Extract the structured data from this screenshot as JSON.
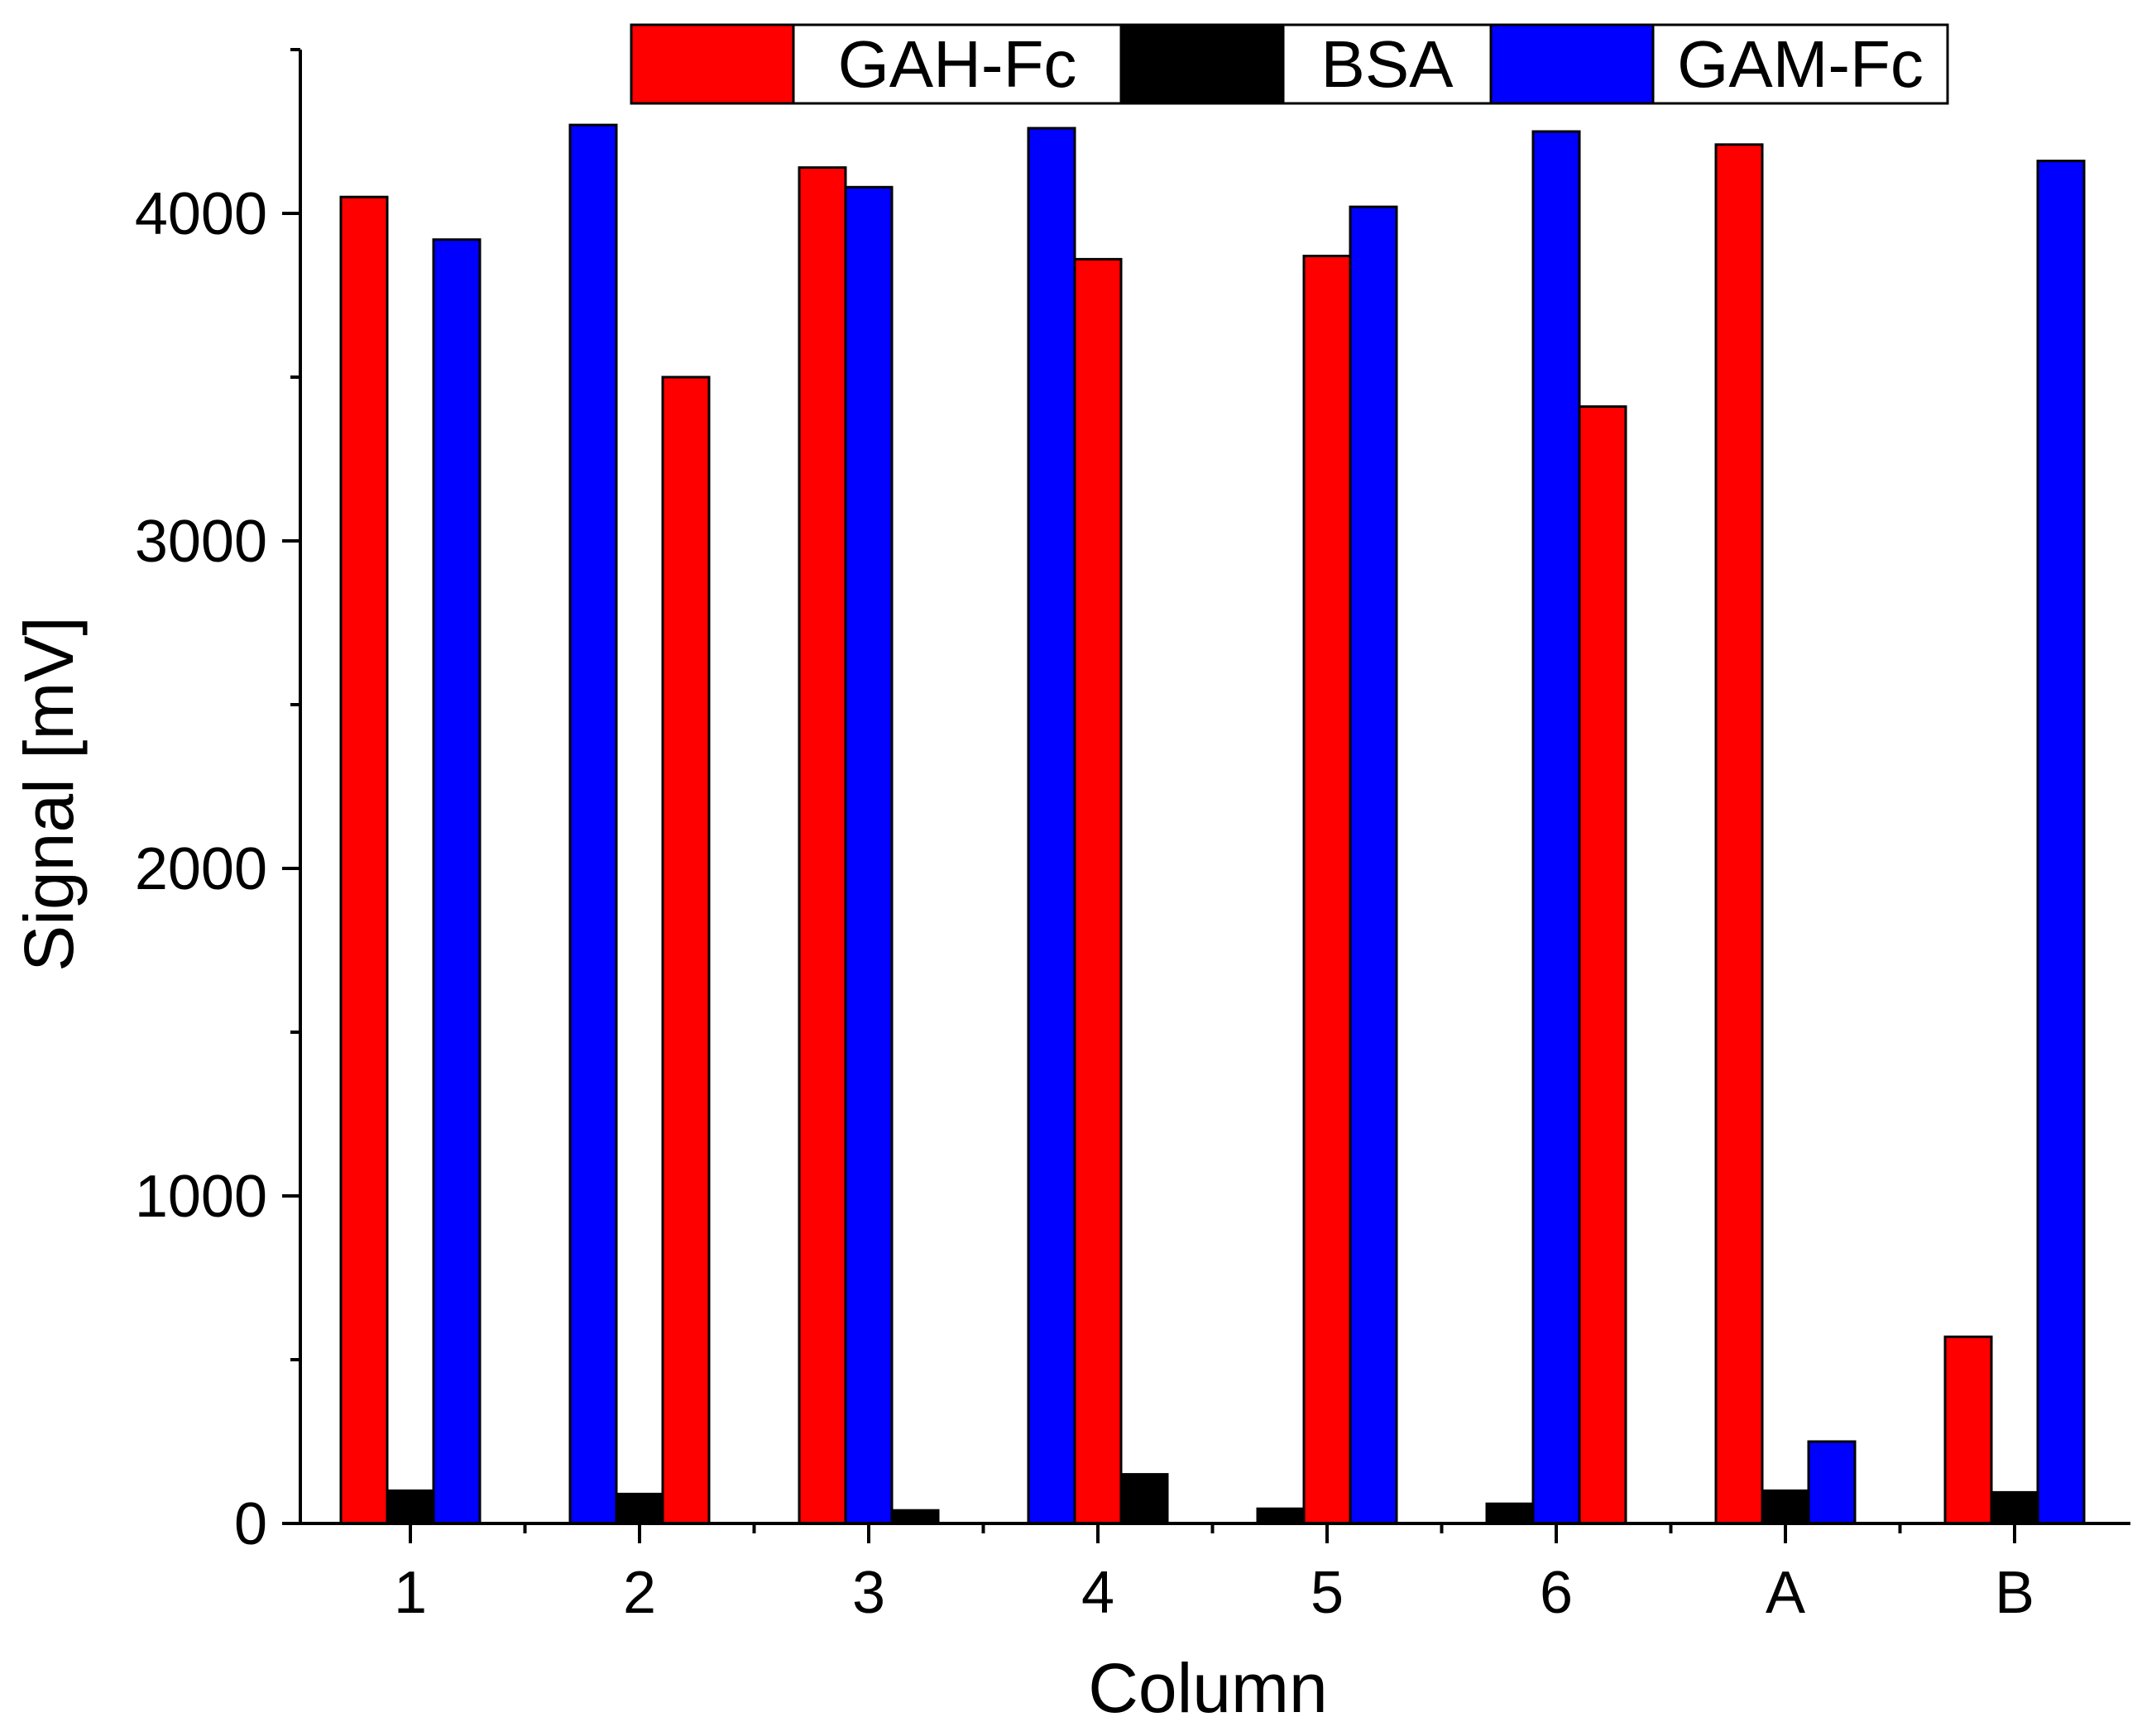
{
  "chart_data": {
    "type": "bar",
    "title": "",
    "xlabel": "Column",
    "ylabel": "Signal [mV]",
    "ylim": [
      0,
      4500
    ],
    "yticks": [
      0,
      1000,
      2000,
      3000,
      4000
    ],
    "grid": false,
    "legend_position": "top-center",
    "categories": [
      "1",
      "2",
      "3",
      "4",
      "5",
      "6",
      "A",
      "B"
    ],
    "category_layouts": [
      [
        "GAH-Fc",
        "BSA",
        "GAM-Fc"
      ],
      [
        "GAM-Fc",
        "BSA",
        "GAH-Fc"
      ],
      [
        "GAH-Fc",
        "GAM-Fc",
        "BSA"
      ],
      [
        "GAM-Fc",
        "GAH-Fc",
        "BSA"
      ],
      [
        "BSA",
        "GAH-Fc",
        "GAM-Fc"
      ],
      [
        "BSA",
        "GAM-Fc",
        "GAH-Fc"
      ],
      [
        "GAH-Fc",
        "BSA",
        "GAM-Fc"
      ],
      [
        "GAH-Fc",
        "BSA",
        "GAM-Fc"
      ]
    ],
    "series": [
      {
        "name": "GAH-Fc",
        "color": "#ff0000",
        "values": [
          4050,
          3500,
          4140,
          3860,
          3870,
          3410,
          4210,
          570
        ]
      },
      {
        "name": "BSA",
        "color": "#000000",
        "values": [
          100,
          90,
          40,
          150,
          45,
          60,
          100,
          95
        ]
      },
      {
        "name": "GAM-Fc",
        "color": "#0000ff",
        "values": [
          3920,
          4270,
          4080,
          4260,
          4020,
          4250,
          250,
          4160
        ]
      }
    ]
  }
}
